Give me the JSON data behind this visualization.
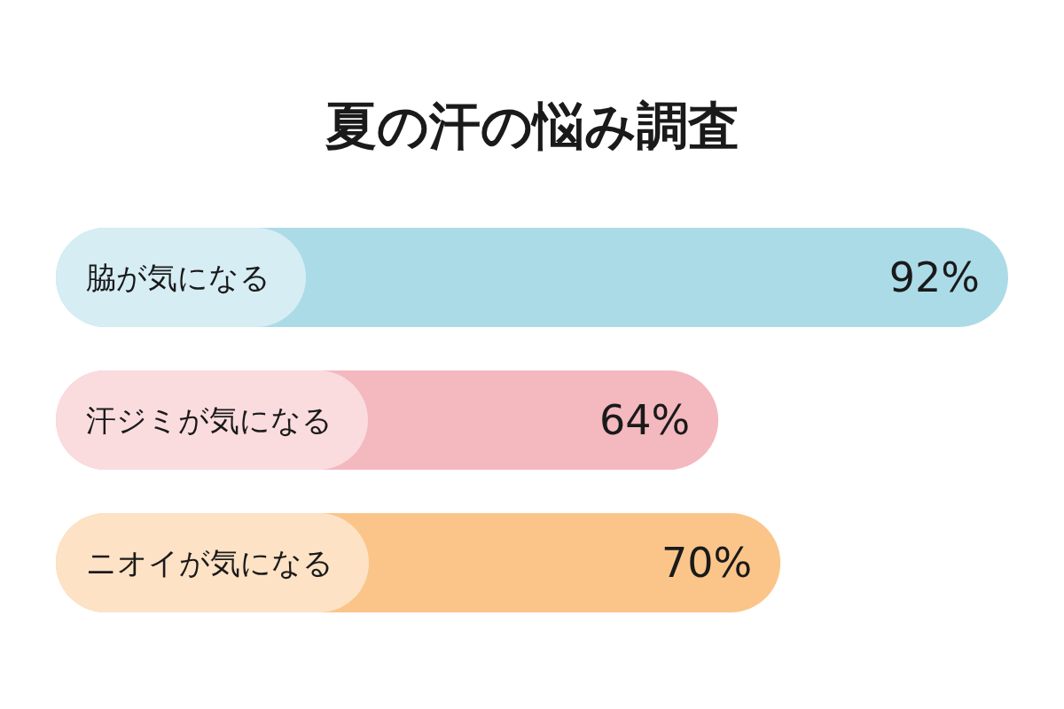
{
  "chart_data": {
    "type": "bar",
    "title": "夏の汗の悩み調査",
    "orientation": "horizontal",
    "categories": [
      "脇が気になる",
      "汗ジミが気になる",
      "ニオイが気になる"
    ],
    "values": [
      92,
      64,
      70
    ],
    "colors": [
      "#acdbe8",
      "#f4b8bf",
      "#fbc58a"
    ],
    "value_labels": [
      "92%",
      "64%",
      "70%"
    ]
  }
}
